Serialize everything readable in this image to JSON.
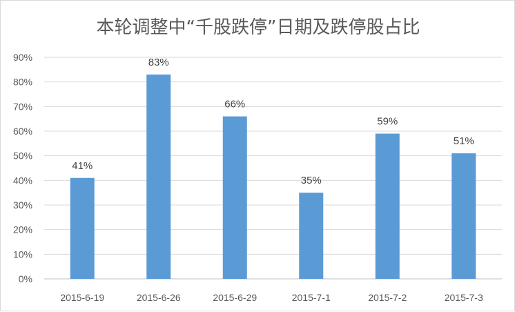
{
  "chart_data": {
    "type": "bar",
    "title": "本轮调整中“千股跌停”日期及跌停股占比",
    "xlabel": "",
    "ylabel": "",
    "categories": [
      "2015-6-19",
      "2015-6-26",
      "2015-6-29",
      "2015-7-1",
      "2015-7-2",
      "2015-7-3"
    ],
    "values": [
      41,
      83,
      66,
      35,
      59,
      51
    ],
    "data_labels": [
      "41%",
      "83%",
      "66%",
      "35%",
      "59%",
      "51%"
    ],
    "y_ticks": [
      "0%",
      "10%",
      "20%",
      "30%",
      "40%",
      "50%",
      "60%",
      "70%",
      "80%",
      "90%"
    ],
    "ylim": [
      0,
      90
    ],
    "grid": true,
    "legend": "none",
    "colors": {
      "bar": "#5b9bd5",
      "grid": "#d9d9d9",
      "text": "#595959"
    }
  }
}
